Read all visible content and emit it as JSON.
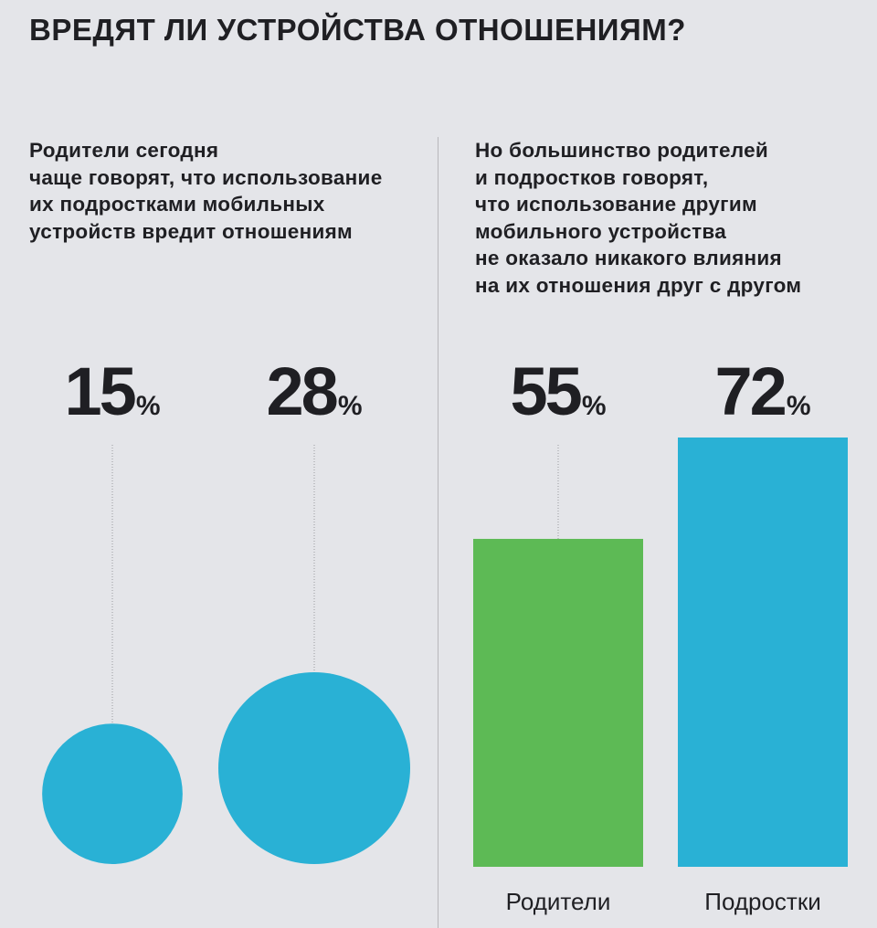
{
  "title": "ВРЕДЯТ ЛИ УСТРОЙСТВА ОТНОШЕНИЯМ?",
  "colors": {
    "background": "#e4e5e9",
    "parents": "#5dba55",
    "teens": "#29b1d5",
    "text": "#1f1f23"
  },
  "chart_data": [
    {
      "type": "bubble",
      "title": "Родители сегодня\nчаще говорят, что использование\nих подростками мобильных\nустройств вредит отношениям",
      "unit": "%",
      "categories": [],
      "values": [
        15,
        28
      ]
    },
    {
      "type": "bar",
      "title": "Но большинство родителей\nи подростков говорят,\nчто использование другим\nмобильного устройства\nне оказало никакого влияния\nна их отношения друг с другом",
      "unit": "%",
      "categories": [
        "Родители",
        "Подростки"
      ],
      "values": [
        55,
        72
      ],
      "ylim": [
        0,
        100
      ]
    }
  ]
}
